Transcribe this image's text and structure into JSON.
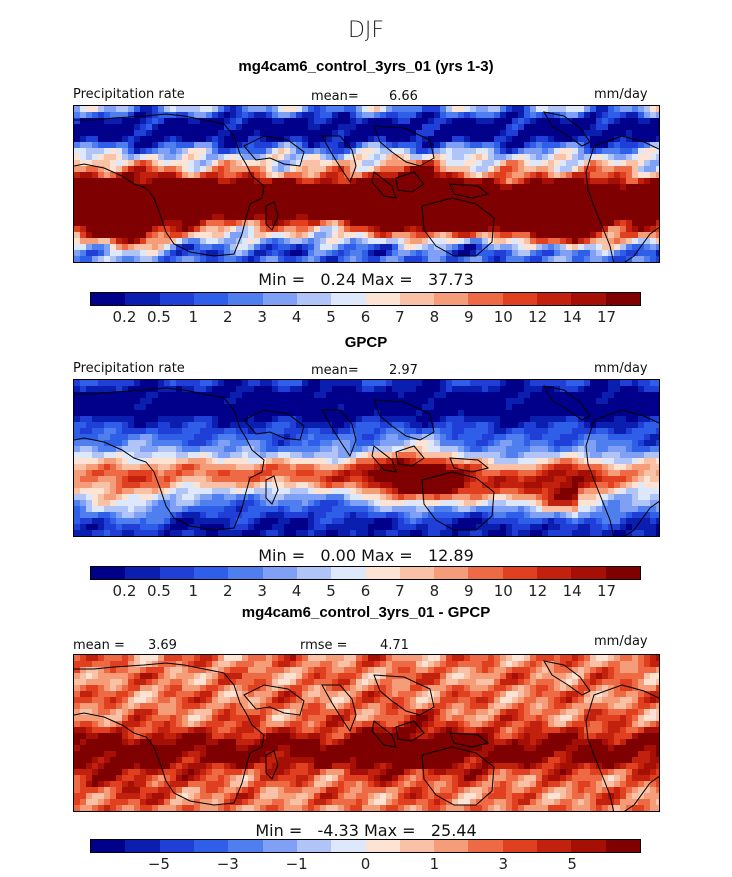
{
  "title": "DJF",
  "panels": [
    {
      "heading": "mg4cam6_control_3yrs_01 (yrs 1-3)",
      "left_label": "Precipitation rate",
      "stat_label": "mean=",
      "stat_value": "6.66",
      "units": "mm/day",
      "min_label": "Min =",
      "min_value": "0.24",
      "max_label": "Max =",
      "max_value": "37.73",
      "colorbar_labels": [
        "0.2",
        "0.5",
        "1",
        "2",
        "3",
        "4",
        "5",
        "6",
        "7",
        "8",
        "9",
        "10",
        "12",
        "14",
        "17"
      ],
      "style": "model"
    },
    {
      "heading": "GPCP",
      "left_label": "Precipitation rate",
      "stat_label": "mean=",
      "stat_value": "2.97",
      "units": "mm/day",
      "min_label": "Min =",
      "min_value": "0.00",
      "max_label": "Max =",
      "max_value": "12.89",
      "colorbar_labels": [
        "0.2",
        "0.5",
        "1",
        "2",
        "3",
        "4",
        "5",
        "6",
        "7",
        "8",
        "9",
        "10",
        "12",
        "14",
        "17"
      ],
      "style": "obs"
    },
    {
      "heading": "mg4cam6_control_3yrs_01 - GPCP",
      "left_label": "mean =",
      "left_value": "3.69",
      "stat_label": "rmse =",
      "stat_value": "4.71",
      "units": "mm/day",
      "min_label": "Min =",
      "min_value": "-4.33",
      "max_label": "Max =",
      "max_value": "25.44",
      "colorbar_labels": [
        "-5",
        "-3",
        "-1",
        "0",
        "1",
        "3",
        "5"
      ],
      "style": "diff"
    }
  ],
  "colorbar_colors": [
    "#00008b",
    "#0a1fb0",
    "#1f3fd6",
    "#2f5fe8",
    "#4f7fef",
    "#7fa0f4",
    "#b0c4f7",
    "#dde8fb",
    "#fde3d3",
    "#f9c1a5",
    "#f59c78",
    "#ee6a44",
    "#e0401f",
    "#c1210d",
    "#a50f06",
    "#7f0000"
  ]
}
